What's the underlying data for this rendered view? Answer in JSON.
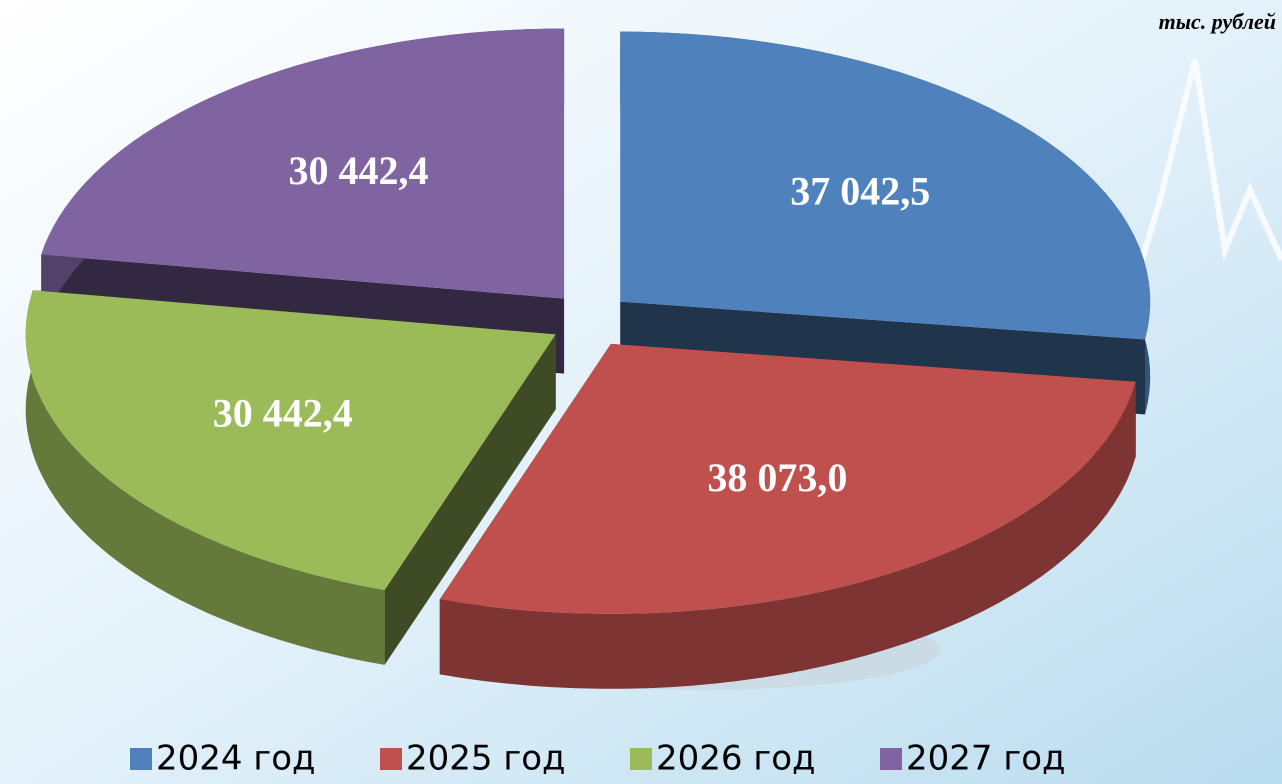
{
  "chart_data": {
    "type": "pie",
    "subtitle": "тыс. рублей",
    "categories": [
      "2024 год",
      "2025 год",
      "2026 год",
      "2027 год"
    ],
    "values": [
      37042.5,
      38073.0,
      30442.4,
      30442.4
    ],
    "value_labels": [
      "37 042,5",
      "38 073,0",
      "30 442,4",
      "30 442,4"
    ],
    "colors": [
      "#4f81bd",
      "#c0504d",
      "#9bbb59",
      "#8064a2"
    ],
    "legend": "bottom"
  }
}
